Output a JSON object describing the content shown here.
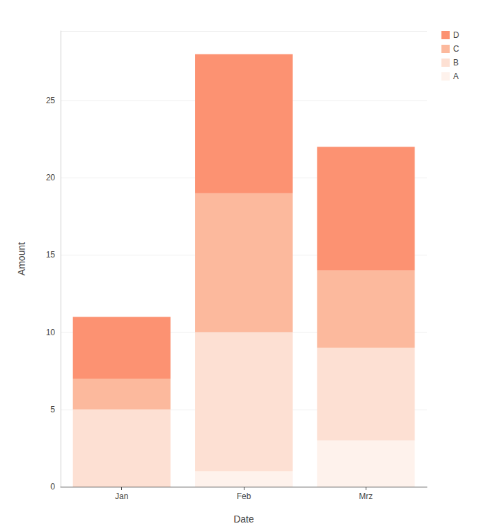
{
  "chart_data": {
    "type": "bar",
    "stacked": true,
    "x_label": "Date",
    "y_label": "Amount",
    "categories": [
      "Jan",
      "Feb",
      "Mrz"
    ],
    "series": [
      {
        "name": "A",
        "color": "#fef2ec",
        "values": [
          0,
          1,
          3
        ]
      },
      {
        "name": "B",
        "color": "#fde0d3",
        "values": [
          5,
          9,
          6
        ]
      },
      {
        "name": "C",
        "color": "#fcb99d",
        "values": [
          2,
          9,
          5
        ]
      },
      {
        "name": "D",
        "color": "#fc9272",
        "values": [
          4,
          9,
          8
        ]
      }
    ],
    "ylim": [
      0,
      29.5
    ],
    "yticks": [
      0,
      5,
      10,
      15,
      20,
      25
    ],
    "grid": true,
    "legend": "top-right"
  }
}
